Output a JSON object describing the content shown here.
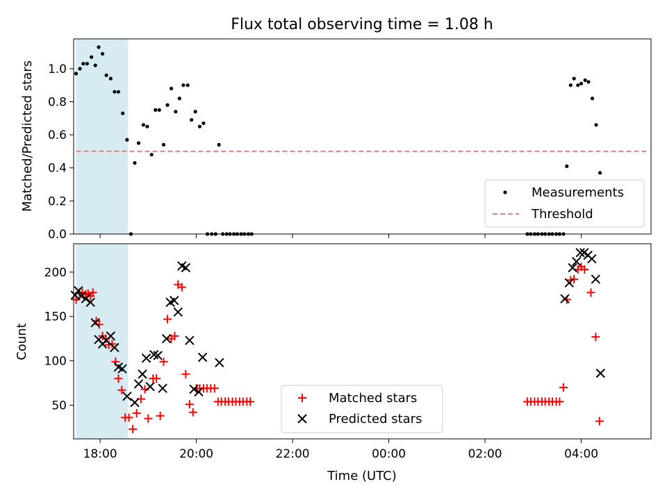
{
  "chart_data": [
    {
      "type": "scatter",
      "title": "Flux total observing time = 1.08 h",
      "ylabel": "Matched/Predicted stars",
      "xlabel": "",
      "ylim": [
        0,
        1.18
      ],
      "xlim": [
        -0.55,
        11.45
      ],
      "yticks": [
        "0.0",
        "0.2",
        "0.4",
        "0.6",
        "0.8",
        "1.0"
      ],
      "shaded_region_hours": [
        -0.5,
        0.58
      ],
      "threshold": 0.5,
      "threshold_range_hours": [
        -0.5,
        11.4
      ],
      "legend": [
        "Measurements",
        "Threshold"
      ],
      "series": [
        {
          "name": "Measurements",
          "points": [
            [
              -0.5,
              0.97
            ],
            [
              -0.42,
              1.0
            ],
            [
              -0.35,
              1.03
            ],
            [
              -0.27,
              1.03
            ],
            [
              -0.18,
              1.07
            ],
            [
              -0.1,
              1.02
            ],
            [
              -0.03,
              1.13
            ],
            [
              0.05,
              1.09
            ],
            [
              0.13,
              0.96
            ],
            [
              0.22,
              0.94
            ],
            [
              0.3,
              0.86
            ],
            [
              0.38,
              0.86
            ],
            [
              0.47,
              0.73
            ],
            [
              0.56,
              0.57
            ],
            [
              0.64,
              0.0
            ],
            [
              0.72,
              0.43
            ],
            [
              0.8,
              0.55
            ],
            [
              0.9,
              0.66
            ],
            [
              0.98,
              0.65
            ],
            [
              1.07,
              0.48
            ],
            [
              1.15,
              0.75
            ],
            [
              1.23,
              0.75
            ],
            [
              1.32,
              0.54
            ],
            [
              1.4,
              0.78
            ],
            [
              1.48,
              0.88
            ],
            [
              1.57,
              0.74
            ],
            [
              1.65,
              0.82
            ],
            [
              1.73,
              0.9
            ],
            [
              1.82,
              0.9
            ],
            [
              1.9,
              0.69
            ],
            [
              1.98,
              0.74
            ],
            [
              2.07,
              0.65
            ],
            [
              2.15,
              0.67
            ],
            [
              2.23,
              0.0
            ],
            [
              2.32,
              0.0
            ],
            [
              2.4,
              0.0
            ],
            [
              2.47,
              0.54
            ],
            [
              2.55,
              0.0
            ],
            [
              2.63,
              0.0
            ],
            [
              2.7,
              0.0
            ],
            [
              2.78,
              0.0
            ],
            [
              2.85,
              0.0
            ],
            [
              2.93,
              0.0
            ],
            [
              3.0,
              0.0
            ],
            [
              3.08,
              0.0
            ],
            [
              3.15,
              0.0
            ],
            [
              8.88,
              0.0
            ],
            [
              8.95,
              0.0
            ],
            [
              9.03,
              0.0
            ],
            [
              9.1,
              0.0
            ],
            [
              9.18,
              0.0
            ],
            [
              9.25,
              0.0
            ],
            [
              9.33,
              0.0
            ],
            [
              9.4,
              0.0
            ],
            [
              9.48,
              0.0
            ],
            [
              9.55,
              0.0
            ],
            [
              9.63,
              0.0
            ],
            [
              9.7,
              0.41
            ],
            [
              9.78,
              0.9
            ],
            [
              9.85,
              0.94
            ],
            [
              9.93,
              0.9
            ],
            [
              10.0,
              0.91
            ],
            [
              10.08,
              0.93
            ],
            [
              10.15,
              0.92
            ],
            [
              10.23,
              0.82
            ],
            [
              10.31,
              0.66
            ],
            [
              10.39,
              0.37
            ]
          ]
        }
      ]
    },
    {
      "type": "scatter",
      "title": "",
      "ylabel": "Count",
      "xlabel": "Time (UTC)",
      "ylim": [
        12,
        232
      ],
      "xlim": [
        -0.55,
        11.45
      ],
      "yticks": [
        "50",
        "100",
        "150",
        "200"
      ],
      "xtick_hours": [
        0,
        2,
        4,
        6,
        8,
        10
      ],
      "xticklabels": [
        "18:00",
        "20:00",
        "22:00",
        "00:00",
        "02:00",
        "04:00"
      ],
      "shaded_region_hours": [
        -0.5,
        0.58
      ],
      "legend": [
        "Matched stars",
        "Predicted stars"
      ],
      "series": [
        {
          "name": "Matched stars",
          "color": "#ff0000",
          "marker": "+",
          "points": [
            [
              -0.5,
              169
            ],
            [
              -0.43,
              177
            ],
            [
              -0.37,
              177
            ],
            [
              -0.3,
              175
            ],
            [
              -0.25,
              176
            ],
            [
              -0.2,
              173
            ],
            [
              -0.15,
              177
            ],
            [
              -0.08,
              145
            ],
            [
              -0.02,
              141
            ],
            [
              0.05,
              128
            ],
            [
              0.12,
              125
            ],
            [
              0.18,
              118
            ],
            [
              0.25,
              119
            ],
            [
              0.32,
              99
            ],
            [
              0.38,
              80
            ],
            [
              0.45,
              67
            ],
            [
              0.52,
              36
            ],
            [
              0.6,
              36
            ],
            [
              0.68,
              23
            ],
            [
              0.76,
              41
            ],
            [
              0.85,
              57
            ],
            [
              0.93,
              68
            ],
            [
              1.0,
              35
            ],
            [
              1.1,
              80
            ],
            [
              1.17,
              80
            ],
            [
              1.25,
              38
            ],
            [
              1.32,
              99
            ],
            [
              1.4,
              147
            ],
            [
              1.48,
              125
            ],
            [
              1.55,
              128
            ],
            [
              1.62,
              186
            ],
            [
              1.7,
              183
            ],
            [
              1.78,
              85
            ],
            [
              1.86,
              51
            ],
            [
              1.93,
              42
            ],
            [
              2.0,
              69
            ],
            [
              2.07,
              69
            ],
            [
              2.15,
              69
            ],
            [
              2.22,
              69
            ],
            [
              2.3,
              69
            ],
            [
              2.38,
              69
            ],
            [
              2.45,
              54
            ],
            [
              2.52,
              54
            ],
            [
              2.6,
              54
            ],
            [
              2.67,
              54
            ],
            [
              2.75,
              54
            ],
            [
              2.82,
              54
            ],
            [
              2.9,
              54
            ],
            [
              2.97,
              54
            ],
            [
              3.05,
              54
            ],
            [
              3.12,
              54
            ],
            [
              8.88,
              54
            ],
            [
              8.95,
              54
            ],
            [
              9.03,
              54
            ],
            [
              9.1,
              54
            ],
            [
              9.18,
              54
            ],
            [
              9.25,
              54
            ],
            [
              9.33,
              54
            ],
            [
              9.4,
              54
            ],
            [
              9.48,
              54
            ],
            [
              9.55,
              54
            ],
            [
              9.63,
              70
            ],
            [
              9.7,
              169
            ],
            [
              9.78,
              191
            ],
            [
              9.85,
              192
            ],
            [
              9.93,
              203
            ],
            [
              10.0,
              206
            ],
            [
              10.07,
              203
            ],
            [
              10.2,
              177
            ],
            [
              10.3,
              127
            ],
            [
              10.38,
              32
            ]
          ]
        },
        {
          "name": "Predicted stars",
          "color": "#000000",
          "marker": "x",
          "points": [
            [
              -0.52,
              174
            ],
            [
              -0.45,
              179
            ],
            [
              -0.39,
              173
            ],
            [
              -0.3,
              170
            ],
            [
              -0.2,
              166
            ],
            [
              -0.1,
              143
            ],
            [
              -0.03,
              124
            ],
            [
              0.05,
              119
            ],
            [
              0.13,
              123
            ],
            [
              0.22,
              128
            ],
            [
              0.3,
              115
            ],
            [
              0.38,
              93
            ],
            [
              0.46,
              91
            ],
            [
              0.56,
              60
            ],
            [
              0.72,
              53
            ],
            [
              0.8,
              74
            ],
            [
              0.88,
              85
            ],
            [
              0.96,
              103
            ],
            [
              1.04,
              71
            ],
            [
              1.12,
              107
            ],
            [
              1.2,
              106
            ],
            [
              1.3,
              69
            ],
            [
              1.38,
              125
            ],
            [
              1.46,
              166
            ],
            [
              1.54,
              168
            ],
            [
              1.62,
              155
            ],
            [
              1.7,
              207
            ],
            [
              1.78,
              205
            ],
            [
              1.86,
              123
            ],
            [
              1.95,
              68
            ],
            [
              2.05,
              65
            ],
            [
              2.13,
              104
            ],
            [
              2.48,
              98
            ],
            [
              9.66,
              170
            ],
            [
              9.75,
              188
            ],
            [
              9.82,
              205
            ],
            [
              9.9,
              212
            ],
            [
              9.98,
              222
            ],
            [
              10.06,
              222
            ],
            [
              10.14,
              219
            ],
            [
              10.22,
              215
            ],
            [
              10.3,
              192
            ],
            [
              10.4,
              86
            ]
          ]
        }
      ]
    }
  ]
}
